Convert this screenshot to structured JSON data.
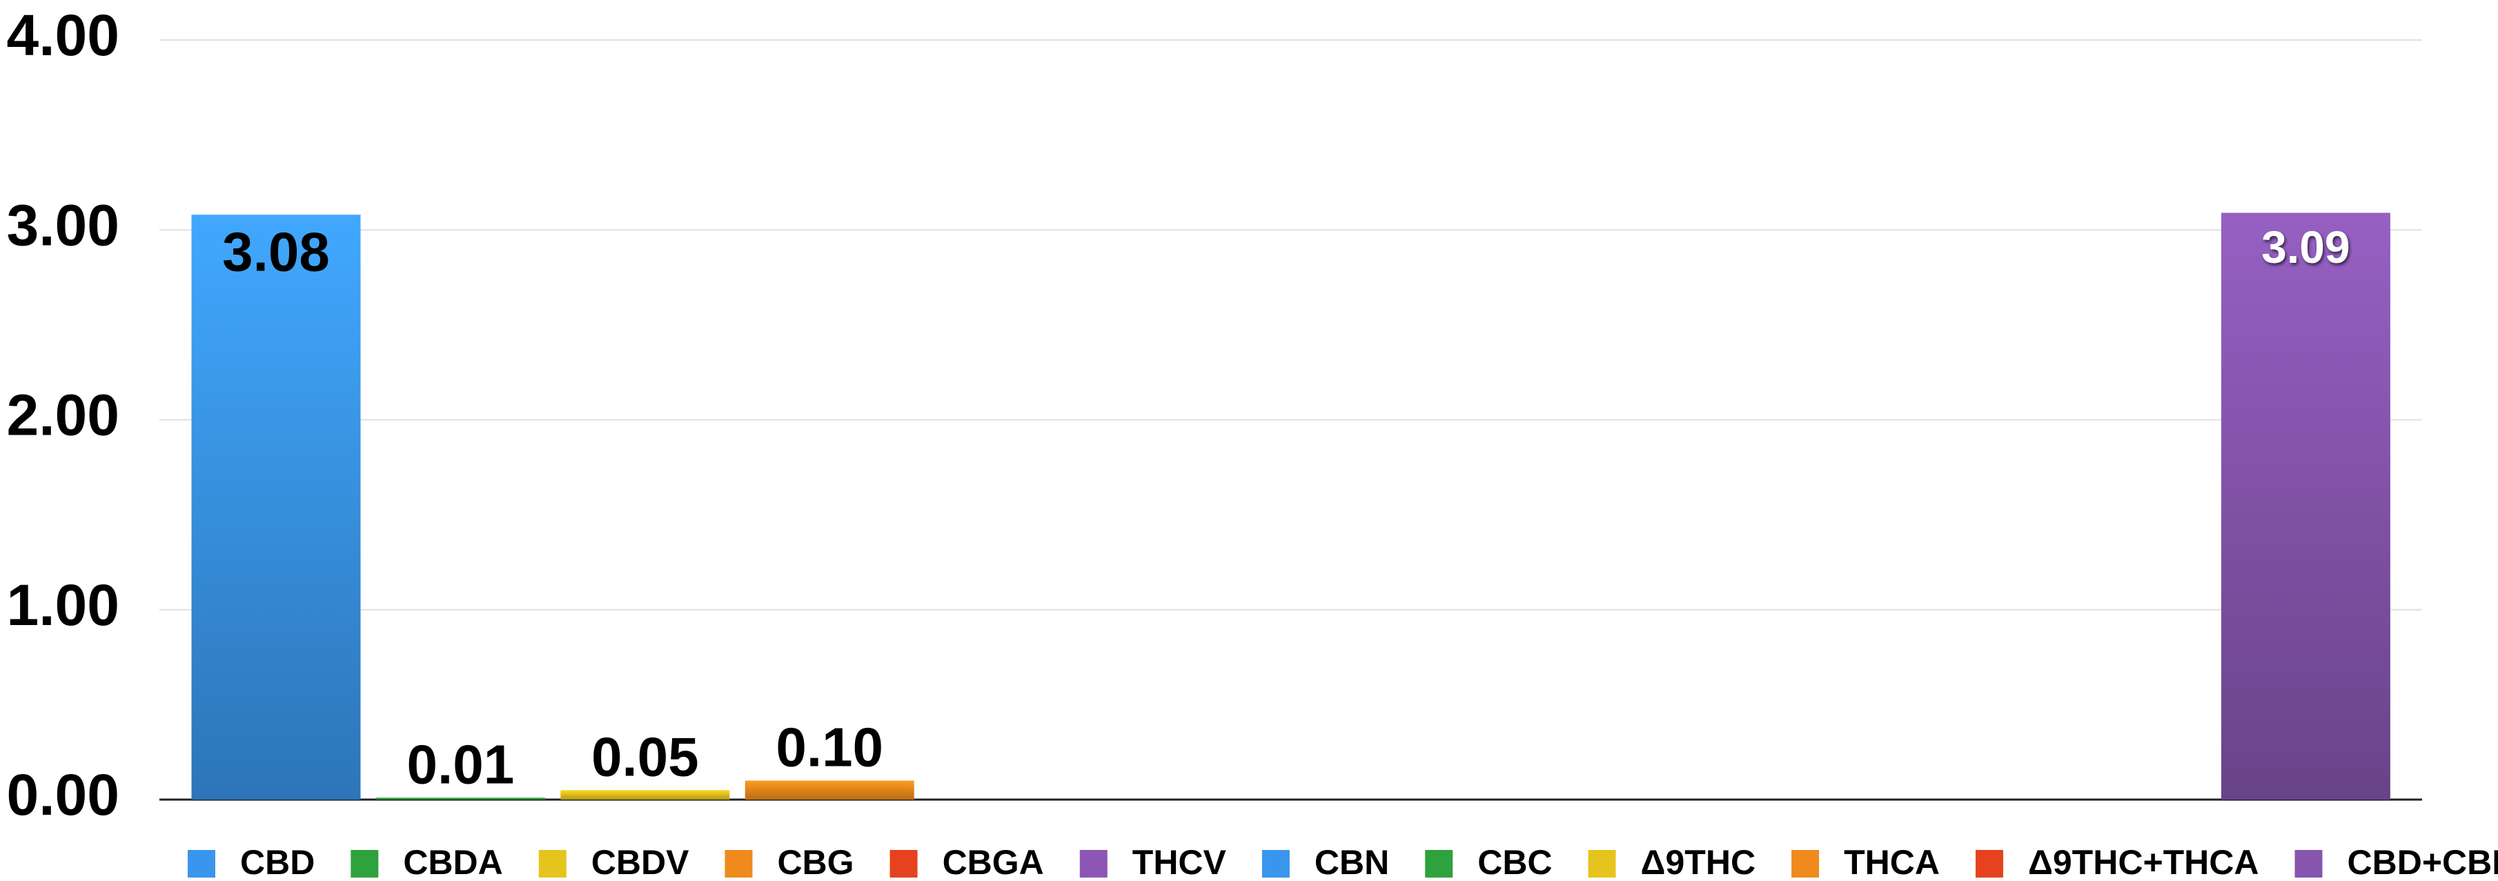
{
  "chart_data": {
    "type": "bar",
    "categories": [
      "CBD",
      "CBDA",
      "CBDV",
      "CBG",
      "CBGA",
      "THCV",
      "CBN",
      "CBC",
      "Δ9THC",
      "THCA",
      "Δ9THC+THCA",
      "CBD+CBDA"
    ],
    "values": [
      3.08,
      0.01,
      0.05,
      0.1,
      null,
      null,
      null,
      null,
      null,
      null,
      null,
      3.09
    ],
    "value_labels": [
      "3.08",
      "0.01",
      "0.05",
      "0.10",
      null,
      null,
      null,
      null,
      null,
      null,
      null,
      "3.09"
    ],
    "colors": [
      "#3a96ec",
      "#2ea23c",
      "#e6c41e",
      "#ef8a1c",
      "#e6421d",
      "#8d56b4",
      "#3a96ec",
      "#2ea23c",
      "#e6c41e",
      "#ef8a1c",
      "#e6421d",
      "#8656ae"
    ],
    "ylim": [
      0,
      4
    ],
    "yticks": [
      {
        "value": 0,
        "label": "0.00"
      },
      {
        "value": 1,
        "label": "1.00"
      },
      {
        "value": 2,
        "label": "2.00"
      },
      {
        "value": 3,
        "label": "3.00"
      },
      {
        "value": 4,
        "label": "4.00"
      }
    ],
    "grid": true,
    "legend": "bottom"
  }
}
